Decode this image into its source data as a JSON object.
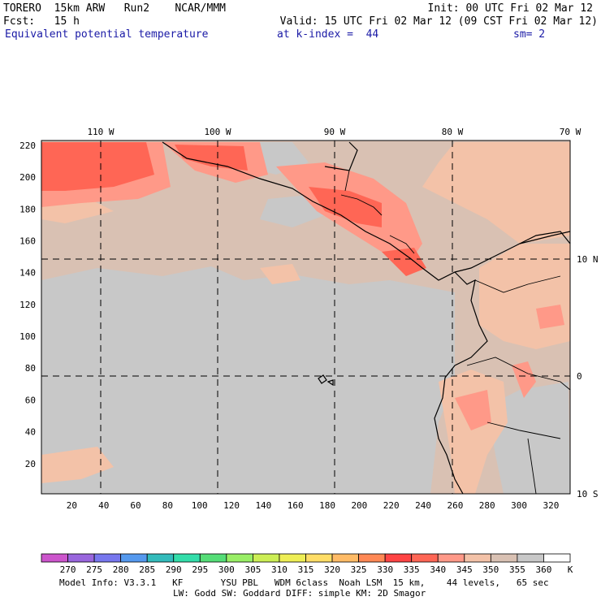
{
  "header": {
    "model": "TORERO",
    "resolution": "15km ARW",
    "run": "Run2",
    "org": "NCAR/MMM",
    "init": "Init: 00 UTC Fri 02 Mar 12",
    "fcst_label": "Fcst:",
    "fcst_value": "15 h",
    "valid": "Valid: 15 UTC Fri 02 Mar 12 (09 CST Fri 02 Mar 12)",
    "field": "Equivalent potential temperature",
    "level": "at k-index =  44",
    "smoothing": "sm= 2"
  },
  "map": {
    "lon_labels": [
      "110 W",
      "100 W",
      "90 W",
      "80 W",
      "70 W"
    ],
    "lat_labels": [
      "10 N",
      "0",
      "10 S"
    ],
    "x_ticks": [
      "20",
      "40",
      "60",
      "80",
      "100",
      "120",
      "140",
      "160",
      "180",
      "200",
      "220",
      "240",
      "260",
      "280",
      "300",
      "320"
    ],
    "y_ticks": [
      "20",
      "40",
      "60",
      "80",
      "100",
      "120",
      "140",
      "160",
      "180",
      "200",
      "220"
    ],
    "grid_range_x": [
      1,
      332
    ],
    "grid_range_y": [
      1,
      223
    ]
  },
  "colorbar": {
    "levels": [
      "270",
      "275",
      "280",
      "285",
      "290",
      "295",
      "300",
      "305",
      "310",
      "315",
      "320",
      "325",
      "330",
      "335",
      "340",
      "345",
      "350",
      "355",
      "360"
    ],
    "unit": "K",
    "colors": [
      "#cc55cc",
      "#9966dd",
      "#7777ee",
      "#5599ee",
      "#33bbbb",
      "#33ddaa",
      "#55dd77",
      "#99ee66",
      "#ccee55",
      "#eeee55",
      "#ffdd66",
      "#ffbb66",
      "#ff8855",
      "#ff4444",
      "#ff6655",
      "#ff9988",
      "#f3c2a8",
      "#d9c1b3",
      "#c8c8c8",
      "#ffffff"
    ]
  },
  "footer": {
    "line1": "Model Info: V3.3.1   KF       YSU PBL   WDM 6class  Noah LSM  15 km,    44 levels,   65 sec",
    "line2": "LW: Godd SW: Goddard DIFF: simple KM: 2D Smagor"
  }
}
